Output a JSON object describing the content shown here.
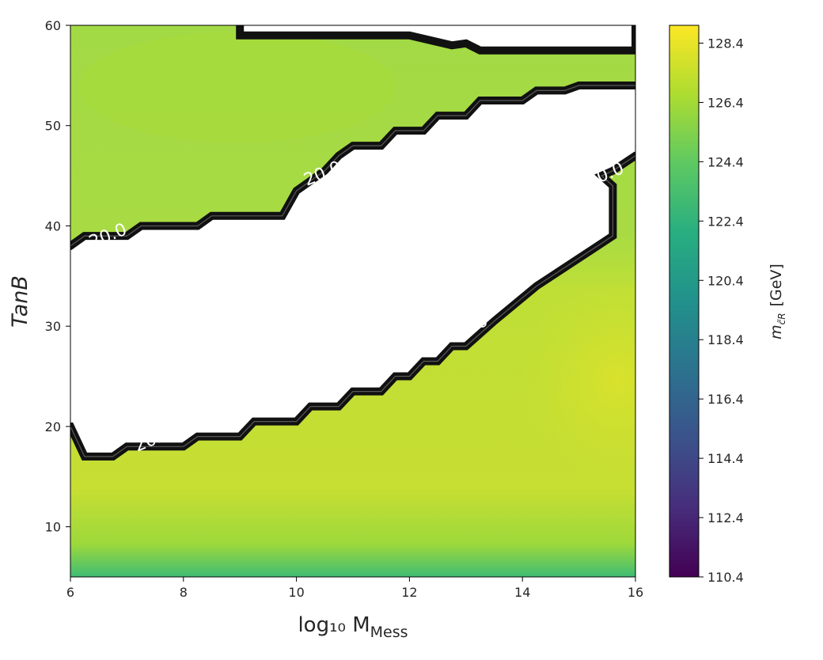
{
  "chart_data": {
    "type": "contour",
    "xlabel": "log₁₀ M",
    "xlabel_subscript": "Mess",
    "ylabel": "TanB",
    "colorbar_label": "m",
    "colorbar_label_subscript": "c̃R",
    "colorbar_label_unit": "[GeV]",
    "xlim": [
      6,
      16
    ],
    "ylim": [
      5,
      60
    ],
    "xticks": [
      "6",
      "8",
      "10",
      "12",
      "14",
      "16"
    ],
    "yticks": [
      "10",
      "20",
      "30",
      "40",
      "50",
      "60"
    ],
    "colorbar_range": [
      110.4,
      129.0
    ],
    "colorbar_ticks": [
      "110.4",
      "112.4",
      "114.4",
      "116.4",
      "118.4",
      "120.4",
      "122.4",
      "124.4",
      "126.4",
      "128.4"
    ],
    "colormap": "viridis",
    "colormap_stops": [
      "#440154",
      "#472d7b",
      "#3b528b",
      "#2c728e",
      "#21918c",
      "#28ae80",
      "#5ec962",
      "#addc30",
      "#fde725"
    ],
    "excluded_region": "white",
    "excluded_lower_boundary": [
      {
        "x": 6.0,
        "y": 20
      },
      {
        "x": 6.25,
        "y": 17
      },
      {
        "x": 6.75,
        "y": 17
      },
      {
        "x": 7.0,
        "y": 18
      },
      {
        "x": 8.0,
        "y": 18
      },
      {
        "x": 8.25,
        "y": 19
      },
      {
        "x": 9.0,
        "y": 19
      },
      {
        "x": 9.25,
        "y": 20.5
      },
      {
        "x": 10.0,
        "y": 20.5
      },
      {
        "x": 10.25,
        "y": 22
      },
      {
        "x": 10.75,
        "y": 22
      },
      {
        "x": 11.0,
        "y": 23.5
      },
      {
        "x": 11.5,
        "y": 23.5
      },
      {
        "x": 11.75,
        "y": 25
      },
      {
        "x": 12.0,
        "y": 25
      },
      {
        "x": 12.25,
        "y": 26.5
      },
      {
        "x": 12.5,
        "y": 26.5
      },
      {
        "x": 12.75,
        "y": 28
      },
      {
        "x": 13.0,
        "y": 28
      },
      {
        "x": 13.5,
        "y": 30.5
      },
      {
        "x": 14.25,
        "y": 34
      },
      {
        "x": 15.6,
        "y": 39
      },
      {
        "x": 15.6,
        "y": 44
      },
      {
        "x": 15.4,
        "y": 45
      },
      {
        "x": 15.6,
        "y": 45.5
      },
      {
        "x": 16.0,
        "y": 47
      }
    ],
    "excluded_upper_boundary": [
      {
        "x": 6.0,
        "y": 38
      },
      {
        "x": 6.25,
        "y": 39
      },
      {
        "x": 7.0,
        "y": 39
      },
      {
        "x": 7.25,
        "y": 40
      },
      {
        "x": 8.25,
        "y": 40
      },
      {
        "x": 8.5,
        "y": 41
      },
      {
        "x": 9.75,
        "y": 41
      },
      {
        "x": 10.0,
        "y": 43.5
      },
      {
        "x": 10.5,
        "y": 45.5
      },
      {
        "x": 10.75,
        "y": 47
      },
      {
        "x": 11.0,
        "y": 48
      },
      {
        "x": 11.5,
        "y": 48
      },
      {
        "x": 11.75,
        "y": 49.5
      },
      {
        "x": 12.25,
        "y": 49.5
      },
      {
        "x": 12.5,
        "y": 51
      },
      {
        "x": 13.0,
        "y": 51
      },
      {
        "x": 13.25,
        "y": 52.5
      },
      {
        "x": 14.0,
        "y": 52.5
      },
      {
        "x": 14.25,
        "y": 53.5
      },
      {
        "x": 14.75,
        "y": 53.5
      },
      {
        "x": 15.0,
        "y": 54
      },
      {
        "x": 16.0,
        "y": 54
      }
    ],
    "excluded_top_region": [
      {
        "x": 9.0,
        "y": 60
      },
      {
        "x": 9.0,
        "y": 59
      },
      {
        "x": 12.0,
        "y": 59
      },
      {
        "x": 12.75,
        "y": 58
      },
      {
        "x": 13.0,
        "y": 58.2
      },
      {
        "x": 13.25,
        "y": 57.5
      },
      {
        "x": 16.0,
        "y": 57.5
      },
      {
        "x": 16.0,
        "y": 60
      }
    ],
    "contour_labels": [
      {
        "text": "20.0",
        "x": 6.7,
        "y": 38.5
      },
      {
        "text": "20.0",
        "x": 7.5,
        "y": 18.2
      },
      {
        "text": "20.0",
        "x": 10.5,
        "y": 44.7
      },
      {
        "text": "120.0",
        "x": 13.0,
        "y": 29.2
      },
      {
        "text": "20.0",
        "x": 15.5,
        "y": 44.6
      }
    ]
  }
}
